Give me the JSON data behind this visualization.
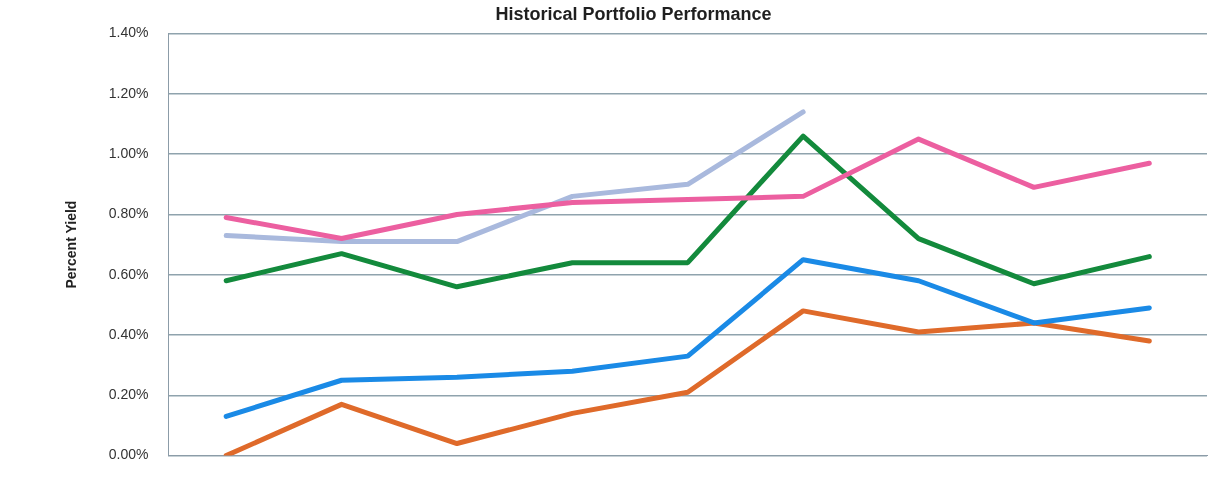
{
  "chart_data": {
    "type": "line",
    "title": "Historical Portfolio Performance",
    "ylabel": "Percent Yield",
    "categories": [
      null,
      null,
      null,
      null,
      null,
      null,
      null,
      null,
      null
    ],
    "series": [
      {
        "color": "#ec5fa0",
        "values": [
          0.79,
          0.72,
          0.8,
          0.84,
          0.85,
          0.86,
          1.05,
          0.89,
          0.97
        ]
      },
      {
        "color": "#a9b9dd",
        "values": [
          0.73,
          0.71,
          0.71,
          0.86,
          0.9,
          1.14,
          null,
          null,
          null
        ]
      },
      {
        "color": "#138a3c",
        "values": [
          0.58,
          0.67,
          0.56,
          0.64,
          0.64,
          1.06,
          0.72,
          0.57,
          0.66
        ]
      },
      {
        "color": "#1a8ae6",
        "values": [
          0.13,
          0.25,
          0.26,
          0.28,
          0.33,
          0.65,
          0.58,
          0.44,
          0.49
        ]
      },
      {
        "color": "#df6a2a",
        "values": [
          0.0,
          0.17,
          0.04,
          0.14,
          0.21,
          0.48,
          0.41,
          0.44,
          0.38
        ]
      }
    ],
    "ylim": [
      0,
      1.4
    ],
    "yticks": [
      {
        "value": 0,
        "label": "0.00%"
      },
      {
        "value": 0.2,
        "label": "0.20%"
      },
      {
        "value": 0.4,
        "label": "0.40%"
      },
      {
        "value": 0.6,
        "label": "0.60%"
      },
      {
        "value": 0.8,
        "label": "0.80%"
      },
      {
        "value": 1,
        "label": "1.00%"
      },
      {
        "value": 1.2,
        "label": "1.20%"
      },
      {
        "value": 1.4,
        "label": "1.40%"
      }
    ],
    "grid": "y",
    "legend": false,
    "tick_labels": "y",
    "marker": "none",
    "line_style": "solid"
  }
}
